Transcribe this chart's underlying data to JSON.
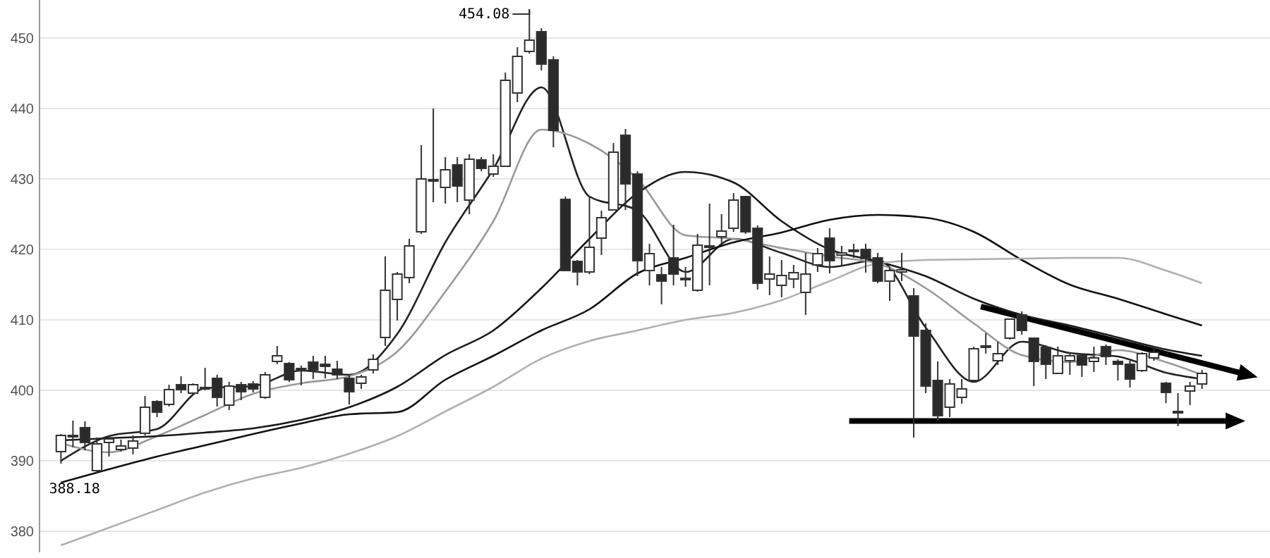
{
  "chart_data": {
    "type": "candlestick",
    "categories": [
      null,
      null,
      null,
      null,
      null,
      null,
      null,
      null,
      null,
      null,
      null,
      null,
      null,
      null,
      null,
      null,
      null,
      null,
      null,
      null,
      null,
      null,
      null,
      null,
      null,
      null,
      null,
      null,
      null,
      null,
      null,
      null,
      null,
      null,
      null,
      null,
      null,
      null,
      null,
      null,
      null,
      null,
      null,
      null,
      null,
      null,
      null,
      null,
      null,
      null,
      null,
      null,
      null,
      null,
      null,
      null,
      null,
      null,
      null,
      null,
      null,
      null,
      null,
      null,
      null,
      null,
      null,
      null,
      null,
      null,
      null,
      null,
      null,
      null,
      null,
      null,
      null,
      null,
      null,
      null,
      null,
      null,
      null,
      null,
      null,
      null,
      null,
      null,
      null,
      null,
      null,
      null,
      null,
      null,
      null,
      null
    ],
    "ohlc": [
      [
        391.3,
        393.8,
        389.6,
        393.6
      ],
      [
        393.4,
        395.7,
        391.9,
        393.6
      ],
      [
        394.7,
        395.6,
        391.5,
        392.6
      ],
      [
        388.6,
        393.3,
        388.18,
        392.4
      ],
      [
        392.6,
        393.6,
        390.6,
        393.1
      ],
      [
        391.6,
        393,
        391.3,
        392.1
      ],
      [
        391.8,
        393.6,
        390.9,
        392.8
      ],
      [
        393.9,
        399.2,
        393.6,
        397.6
      ],
      [
        398.4,
        398.6,
        396.2,
        396.9
      ],
      [
        398,
        400.8,
        397.7,
        400.1
      ],
      [
        400.8,
        402,
        399.6,
        400.1
      ],
      [
        399.6,
        401,
        399.4,
        400.8
      ],
      [
        400.2,
        403.2,
        400,
        400.4
      ],
      [
        401.7,
        402.2,
        397.7,
        399
      ],
      [
        397.9,
        401.2,
        397.2,
        400.6
      ],
      [
        400.8,
        401.2,
        398.6,
        399.8
      ],
      [
        400.9,
        401.3,
        399.7,
        400.2
      ],
      [
        399,
        402.6,
        398.8,
        402.2
      ],
      [
        404.1,
        406.3,
        403.7,
        404.9
      ],
      [
        403.8,
        404,
        401.2,
        401.5
      ],
      [
        403.1,
        403.5,
        400.7,
        402.8
      ],
      [
        404,
        404.9,
        401.6,
        402.9
      ],
      [
        403.7,
        404.9,
        401.7,
        403.4
      ],
      [
        403,
        404.2,
        401.6,
        402.2
      ],
      [
        401.7,
        402.2,
        398,
        399.8
      ],
      [
        401,
        402.2,
        400.2,
        401.9
      ],
      [
        402.9,
        405.1,
        402.4,
        404.4
      ],
      [
        407.5,
        419,
        406.3,
        414.2
      ],
      [
        412.9,
        416.8,
        409.9,
        416.5
      ],
      [
        416,
        421.5,
        415.2,
        420.5
      ],
      [
        422.5,
        434.8,
        422.2,
        430
      ],
      [
        429.9,
        440,
        426.7,
        429.7
      ],
      [
        428.8,
        433.1,
        426.5,
        431.3
      ],
      [
        432,
        433.1,
        426.7,
        429
      ],
      [
        427,
        433.5,
        425,
        432.8
      ],
      [
        432.7,
        433.1,
        431.1,
        431.5
      ],
      [
        430.7,
        433.5,
        430.3,
        431.8
      ],
      [
        431.8,
        445.1,
        431.8,
        444
      ],
      [
        442.2,
        448.7,
        440.9,
        447.4
      ],
      [
        448.1,
        454.08,
        447.8,
        449.7
      ],
      [
        450.9,
        451.4,
        445.4,
        446.3
      ],
      [
        446.9,
        447.4,
        434.5,
        436.9
      ],
      [
        427.1,
        427.5,
        416.9,
        417
      ],
      [
        418.3,
        418.5,
        414.9,
        416.8
      ],
      [
        416.8,
        427.5,
        416.5,
        420.3
      ],
      [
        421.6,
        425.5,
        419.2,
        424.5
      ],
      [
        425.6,
        435.1,
        425.5,
        433.8
      ],
      [
        436.2,
        437.1,
        425.6,
        429.3
      ],
      [
        430.7,
        431.1,
        416.2,
        418.4
      ],
      [
        417,
        420.8,
        414.9,
        419.4
      ],
      [
        416.4,
        417.5,
        412.2,
        415.5
      ],
      [
        418.8,
        423.5,
        414.9,
        416.5
      ],
      [
        415.9,
        417.5,
        414.7,
        415.7
      ],
      [
        414.2,
        422.2,
        414,
        420.6
      ],
      [
        420.3,
        426.5,
        414.9,
        420.5
      ],
      [
        421.8,
        425,
        420.9,
        422.6
      ],
      [
        423,
        428,
        422.5,
        427
      ],
      [
        427.5,
        427.6,
        422.2,
        422.5
      ],
      [
        423,
        423.4,
        414.3,
        415.2
      ],
      [
        415.8,
        419,
        413.5,
        416.5
      ],
      [
        414.9,
        418.5,
        413.2,
        416.3
      ],
      [
        415.8,
        417.8,
        414.5,
        416.7
      ],
      [
        413.9,
        419.5,
        410.7,
        416.5
      ],
      [
        417.8,
        420.2,
        416.8,
        419.4
      ],
      [
        421.6,
        423,
        416.6,
        418.4
      ],
      [
        419.2,
        420.5,
        417.8,
        419.5
      ],
      [
        419.7,
        420.8,
        418.8,
        419.9
      ],
      [
        420,
        420.8,
        416.7,
        418.7
      ],
      [
        418.8,
        419.5,
        415.2,
        415.5
      ],
      [
        415.5,
        417.5,
        412.7,
        417
      ],
      [
        416.8,
        419.5,
        415.5,
        417.1
      ],
      [
        413.4,
        414.5,
        393.3,
        407.7
      ],
      [
        408.5,
        409.5,
        399.6,
        400.6
      ],
      [
        401.4,
        404.1,
        395.6,
        396.4
      ],
      [
        397.6,
        401.6,
        396.2,
        400.9
      ],
      [
        399,
        401.6,
        398.1,
        400.2
      ],
      [
        401.4,
        406.2,
        401.2,
        405.9
      ],
      [
        406.1,
        408.1,
        405.2,
        406.3
      ],
      [
        404.2,
        406.9,
        403.6,
        405.2
      ],
      [
        407.4,
        410.2,
        407.2,
        410.1
      ],
      [
        410.7,
        411.2,
        407.9,
        408.5
      ],
      [
        407.4,
        407.5,
        400.6,
        404.1
      ],
      [
        406.1,
        406.4,
        401.6,
        403.7
      ],
      [
        402.4,
        406.2,
        402.3,
        404.9
      ],
      [
        404.2,
        405.4,
        402.2,
        404.9
      ],
      [
        404.9,
        405.2,
        401.9,
        403.6
      ],
      [
        404.1,
        406.2,
        402.6,
        404.6
      ],
      [
        406.2,
        406.5,
        403.6,
        404.8
      ],
      [
        404.1,
        404.4,
        401.4,
        403.7
      ],
      [
        403.7,
        404.2,
        400.4,
        401.6
      ],
      [
        402.8,
        405.4,
        402.6,
        405.2
      ],
      [
        404.6,
        406.3,
        404.2,
        405.4
      ],
      [
        401,
        401.2,
        398.2,
        399.7
      ],
      [
        397,
        399.6,
        394.9,
        396.9
      ],
      [
        399.9,
        401.2,
        397.9,
        400.6
      ],
      [
        400.9,
        402.9,
        400.2,
        402.4
      ]
    ],
    "series": [
      {
        "type": "line",
        "color": "#222222",
        "values": [
          390,
          null,
          null,
          null,
          393.5,
          null,
          null,
          null,
          394.5,
          null,
          null,
          null,
          400.3,
          null,
          null,
          null,
          400.6,
          null,
          null,
          null,
          402.8,
          null,
          null,
          null,
          402.2,
          null,
          null,
          null,
          408,
          null,
          null,
          null,
          421,
          null,
          null,
          null,
          431.4,
          null,
          null,
          null,
          443,
          null,
          null,
          null,
          427.5,
          null,
          null,
          null,
          425.5,
          null,
          null,
          null,
          416.8,
          null,
          null,
          null,
          421.5,
          null,
          null,
          null,
          419.5,
          null,
          null,
          null,
          417.5,
          null,
          null,
          null,
          418.5,
          null,
          null,
          null,
          408.9,
          null,
          null,
          null,
          401.2,
          null,
          null,
          null,
          406.9,
          null,
          null,
          null,
          405.3,
          null,
          null,
          null,
          404.8,
          null,
          null,
          null,
          402.5,
          null,
          null,
          401.6
        ]
      },
      {
        "type": "line",
        "color": "#999999",
        "values": [
          392.5,
          null,
          null,
          null,
          391.2,
          null,
          null,
          null,
          393.5,
          null,
          null,
          null,
          396.5,
          null,
          null,
          null,
          399.5,
          null,
          null,
          null,
          401,
          null,
          null,
          null,
          402,
          null,
          null,
          null,
          405.5,
          null,
          null,
          null,
          414,
          null,
          null,
          null,
          424,
          null,
          null,
          null,
          437,
          null,
          null,
          null,
          435,
          null,
          null,
          null,
          430,
          null,
          null,
          null,
          422,
          null,
          null,
          null,
          421.5,
          null,
          null,
          null,
          420.2,
          null,
          null,
          null,
          419,
          null,
          null,
          null,
          418,
          null,
          null,
          null,
          414.5,
          null,
          null,
          null,
          409.5,
          null,
          null,
          null,
          405,
          null,
          null,
          null,
          404,
          null,
          null,
          null,
          405.7,
          null,
          null,
          null,
          404,
          null,
          null,
          402.2
        ]
      },
      {
        "type": "line",
        "color": "#1a1a1a",
        "values": [
          392.9,
          null,
          null,
          null,
          393.2,
          null,
          null,
          null,
          393.5,
          null,
          null,
          null,
          394,
          null,
          null,
          null,
          394.6,
          null,
          null,
          null,
          395.8,
          null,
          null,
          null,
          397.6,
          null,
          null,
          null,
          400.5,
          null,
          null,
          null,
          405,
          null,
          null,
          null,
          408.5,
          null,
          null,
          null,
          414.5,
          null,
          null,
          null,
          421.5,
          null,
          null,
          null,
          428,
          null,
          null,
          null,
          431,
          null,
          null,
          null,
          429.5,
          null,
          null,
          null,
          424,
          null,
          null,
          null,
          420,
          null,
          null,
          null,
          418.3,
          null,
          null,
          null,
          416.2,
          null,
          null,
          null,
          413,
          null,
          null,
          null,
          410.7,
          null,
          null,
          null,
          409.2,
          null,
          null,
          null,
          407.5,
          null,
          null,
          null,
          405.8,
          null,
          null,
          404.9
        ]
      },
      {
        "type": "line",
        "color": "#111111",
        "values": [
          386.9,
          null,
          null,
          null,
          388.8,
          null,
          null,
          null,
          390.6,
          null,
          null,
          null,
          392.2,
          null,
          null,
          null,
          393.8,
          null,
          null,
          null,
          395.3,
          null,
          null,
          null,
          396.6,
          null,
          null,
          null,
          396.9,
          null,
          null,
          null,
          401.5,
          null,
          null,
          null,
          404.9,
          null,
          null,
          null,
          408.5,
          null,
          null,
          null,
          411.5,
          null,
          null,
          null,
          416.6,
          null,
          null,
          null,
          418.8,
          null,
          null,
          null,
          421,
          null,
          null,
          null,
          422.4,
          null,
          null,
          null,
          424.2,
          null,
          null,
          null,
          424.9,
          null,
          null,
          null,
          424.5,
          null,
          null,
          null,
          422.5,
          null,
          null,
          null,
          418.5,
          null,
          null,
          null,
          415,
          null,
          null,
          null,
          413,
          null,
          null,
          null,
          410.8,
          null,
          null,
          409.2
        ]
      },
      {
        "type": "line",
        "color": "#b0b0b0",
        "values": [
          378,
          null,
          null,
          null,
          380.5,
          null,
          null,
          null,
          383,
          null,
          null,
          null,
          385.5,
          null,
          null,
          null,
          387.5,
          null,
          null,
          null,
          389,
          null,
          null,
          null,
          391,
          null,
          null,
          null,
          393.5,
          null,
          null,
          null,
          397,
          null,
          null,
          null,
          400.5,
          null,
          null,
          null,
          404.5,
          null,
          null,
          null,
          407,
          null,
          null,
          null,
          408.5,
          null,
          null,
          null,
          410,
          null,
          null,
          null,
          411,
          null,
          null,
          null,
          412.8,
          null,
          null,
          null,
          415.5,
          null,
          null,
          null,
          418,
          null,
          null,
          null,
          418.5,
          null,
          null,
          null,
          418.6,
          null,
          null,
          null,
          418.7,
          null,
          null,
          null,
          418.8,
          null,
          null,
          null,
          418.8,
          null,
          null,
          null,
          417,
          null,
          null,
          415.2
        ]
      }
    ],
    "ylim": [
      377,
      455.4
    ],
    "yticks": [
      380,
      390,
      400,
      410,
      420,
      430,
      440,
      450
    ],
    "grid": "y",
    "tick_labels": "y",
    "annotations": [
      "454.08",
      "388.18"
    ]
  }
}
